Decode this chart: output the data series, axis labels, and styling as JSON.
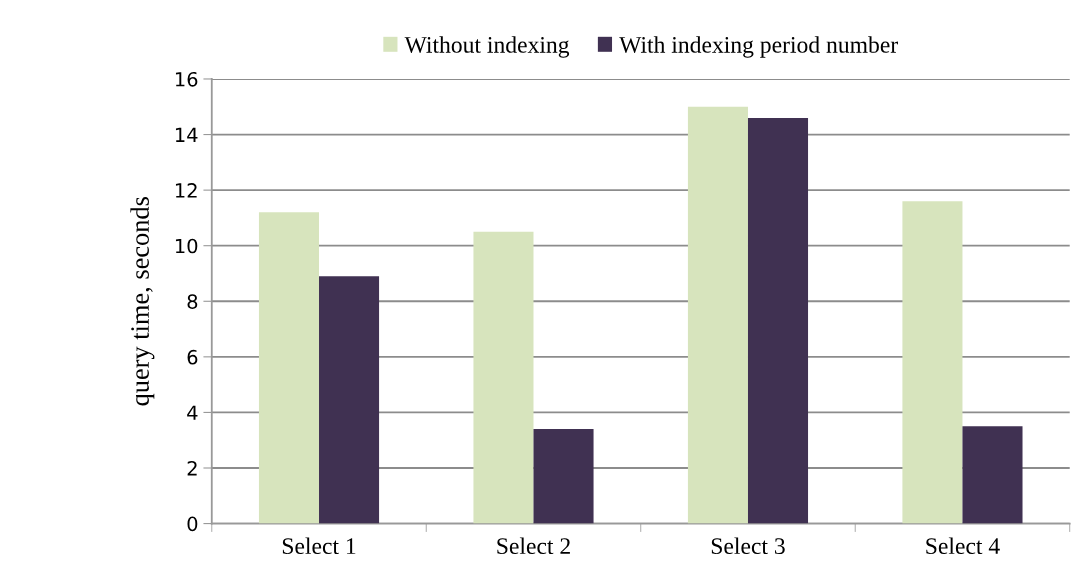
{
  "chart_data": {
    "type": "bar",
    "ylabel": "query time, seconds",
    "categories": [
      "Select 1",
      "Select 2",
      "Select 3",
      "Select 4"
    ],
    "series": [
      {
        "name": "Without indexing",
        "color": "#d7e4bd",
        "values": [
          11.2,
          10.5,
          15.0,
          11.6
        ]
      },
      {
        "name": "With indexing period number",
        "color": "#403152",
        "values": [
          8.9,
          3.4,
          14.6,
          3.5
        ]
      }
    ],
    "ylim": [
      0,
      16
    ],
    "yticks": [
      0,
      2,
      4,
      6,
      8,
      10,
      12,
      14,
      16
    ],
    "grid": "y",
    "legend": "top"
  }
}
